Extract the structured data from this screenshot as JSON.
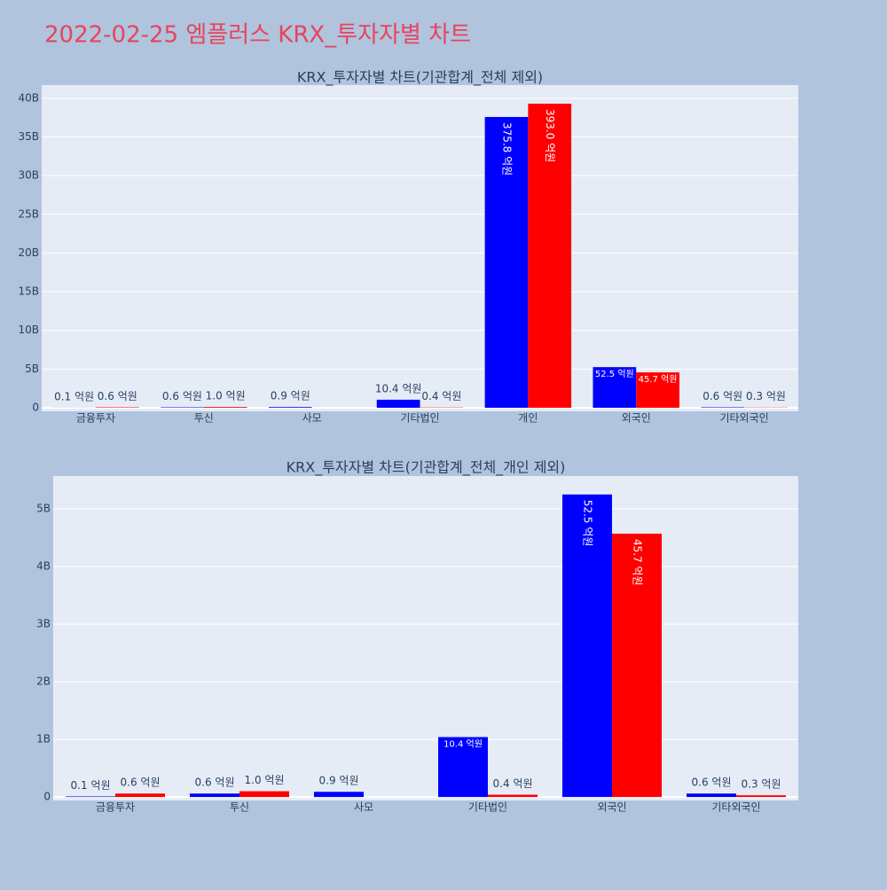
{
  "title": "2022-02-25 엠플러스 KRX_투자자별 차트",
  "chart_data": [
    {
      "type": "bar",
      "title": "KRX_투자자별 차트(기관합계_전체 제외)",
      "categories": [
        "금융투자",
        "투신",
        "사모",
        "기타법인",
        "개인",
        "외국인",
        "기타외국인"
      ],
      "series": [
        {
          "color": "#0000ff",
          "values": [
            10000000,
            60000000,
            90000000,
            1040000000,
            37580000000,
            5250000000,
            60000000
          ],
          "value_labels": [
            "0.1 억원",
            "0.6 억원",
            "0.9 억원",
            "10.4 억원",
            "375.8 억원",
            "52.5 억원",
            "0.6 억원"
          ]
        },
        {
          "color": "#ff0000",
          "values": [
            60000000,
            100000000,
            null,
            40000000,
            39300000000,
            4570000000,
            30000000
          ],
          "value_labels": [
            "0.6 억원",
            "1.0 억원",
            null,
            "0.4 억원",
            "393.0 억원",
            "45.7 억원",
            "0.3 억원"
          ]
        }
      ],
      "ylim": [
        -460000000,
        41700000000
      ],
      "yticks": [
        0,
        {
          "value": 5000000000,
          "label": "5B"
        },
        {
          "value": 10000000000,
          "label": "10B"
        },
        {
          "value": 15000000000,
          "label": "15B"
        },
        {
          "value": 20000000000,
          "label": "20B"
        },
        {
          "value": 25000000000,
          "label": "25B"
        },
        {
          "value": 30000000000,
          "label": "30B"
        },
        {
          "value": 35000000000,
          "label": "35B"
        },
        {
          "value": 40000000000,
          "label": "40B"
        }
      ],
      "grid": true
    },
    {
      "type": "bar",
      "title": "KRX_투자자별 차트(기관합계_전체_개인 제외)",
      "categories": [
        "금융투자",
        "투신",
        "사모",
        "기타법인",
        "외국인",
        "기타외국인"
      ],
      "series": [
        {
          "color": "#0000ff",
          "values": [
            10000000,
            60000000,
            90000000,
            1040000000,
            5250000000,
            60000000
          ],
          "value_labels": [
            "0.1 억원",
            "0.6 억원",
            "0.9 억원",
            "10.4 억원",
            "52.5 억원",
            "0.6 억원"
          ]
        },
        {
          "color": "#ff0000",
          "values": [
            60000000,
            100000000,
            null,
            40000000,
            4570000000,
            30000000
          ],
          "value_labels": [
            "0.6 억원",
            "1.0 억원",
            null,
            "0.4 억원",
            "45.7 억원",
            "0.3 억원"
          ]
        }
      ],
      "ylim": [
        -60000000,
        5570000000
      ],
      "yticks": [
        0,
        {
          "value": 1000000000,
          "label": "1B"
        },
        {
          "value": 2000000000,
          "label": "2B"
        },
        {
          "value": 3000000000,
          "label": "3B"
        },
        {
          "value": 4000000000,
          "label": "4B"
        },
        {
          "value": 5000000000,
          "label": "5B"
        }
      ],
      "grid": true
    }
  ]
}
